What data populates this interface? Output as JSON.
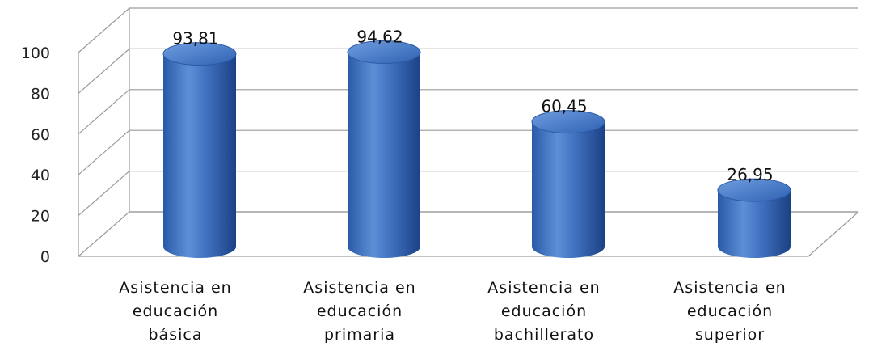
{
  "chart_data": {
    "type": "bar",
    "title": "",
    "xlabel": "",
    "ylabel": "",
    "categories": [
      [
        "Asistencia en",
        "educación",
        "básica"
      ],
      [
        "Asistencia en",
        "educación",
        "primaria"
      ],
      [
        "Asistencia en",
        "educación",
        "bachillerato"
      ],
      [
        "Asistencia en",
        "educación",
        "superior"
      ]
    ],
    "values": [
      93.81,
      94.62,
      60.45,
      26.95
    ],
    "data_labels": [
      "93,81",
      "94,62",
      "60,45",
      "26,95"
    ],
    "yticks": [
      0,
      20,
      40,
      60,
      80,
      100
    ],
    "ylim": [
      0,
      100
    ],
    "grid": true,
    "legend": "none",
    "bar_shape": "3d-cylinder",
    "colors": {
      "bar": "#4a7cc7",
      "bar_dark": "#1f4a8f",
      "bar_light": "#8fb3ea",
      "grid": "#9a9a9a"
    }
  }
}
